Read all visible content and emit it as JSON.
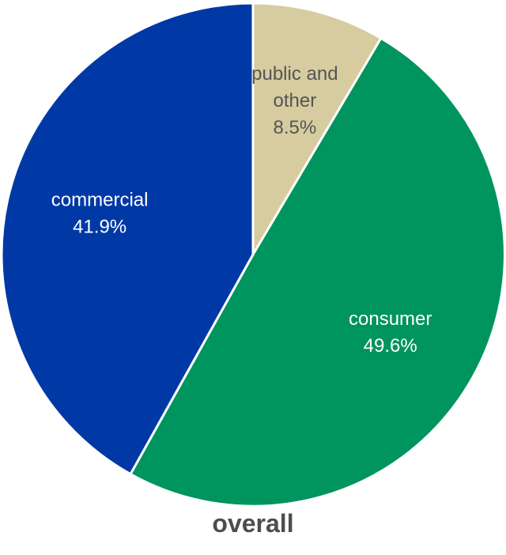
{
  "chart_data": {
    "type": "pie",
    "title": "overall",
    "start_angle_deg": 0,
    "direction": "clockwise",
    "slices": [
      {
        "label_lines": [
          "public and",
          "other"
        ],
        "percent_label": "8.5%",
        "value": 8.5,
        "color": "#d6cc9f",
        "label_color": "#555555"
      },
      {
        "label_lines": [
          "consumer"
        ],
        "percent_label": "49.6%",
        "value": 49.6,
        "color": "#00945e",
        "label_color": "#ffffff"
      },
      {
        "label_lines": [
          "commercial"
        ],
        "percent_label": "41.9%",
        "value": 41.9,
        "color": "#0039a6",
        "label_color": "#ffffff"
      }
    ],
    "background_color": "#ffffff",
    "slice_border_color": "#ffffff"
  }
}
